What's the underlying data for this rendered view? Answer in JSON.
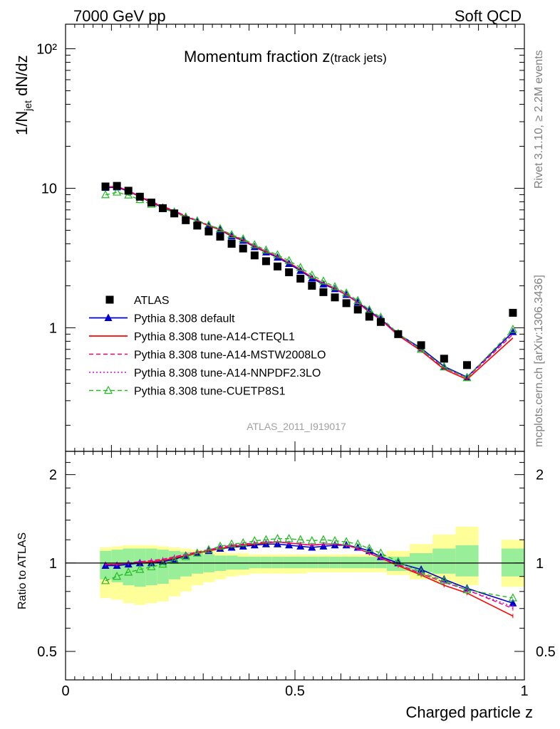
{
  "header": {
    "left": "7000 GeV pp",
    "right": "Soft QCD"
  },
  "side": {
    "rivet": "Rivet 3.1.10, ≥ 2.2M events",
    "mcplots": "mcplots.cern.ch [arXiv:1306.3436]"
  },
  "analysis_id": "ATLAS_2011_I919017",
  "main_title": "Momentum fraction z",
  "main_title_sub": "(track jets)",
  "ylabel_main": "1/N",
  "ylabel_main_sub": "jet",
  "ylabel_main_rest": " dN/dz",
  "ylabel_ratio": "Ratio to ATLAS",
  "xlabel": "Charged particle z",
  "chart_data": {
    "type": "line",
    "x_range": [
      0,
      1
    ],
    "y_main_range": [
      0.13,
      150
    ],
    "y_main_scale": "log",
    "y_ratio_range": [
      0.4,
      2.4
    ],
    "y_ratio_scale": "log",
    "x_ticks": [
      "0",
      "0.5",
      "1"
    ],
    "y_main_ticks": [
      "1",
      "10",
      "10²"
    ],
    "y_ratio_ticks": [
      "0.5",
      "1",
      "2"
    ],
    "legend_position": "middle-left",
    "x": [
      0.087,
      0.112,
      0.137,
      0.162,
      0.187,
      0.212,
      0.237,
      0.262,
      0.287,
      0.312,
      0.337,
      0.362,
      0.387,
      0.412,
      0.437,
      0.462,
      0.487,
      0.512,
      0.537,
      0.562,
      0.587,
      0.612,
      0.637,
      0.662,
      0.687,
      0.725,
      0.775,
      0.825,
      0.875,
      0.975
    ],
    "atlas": [
      10.3,
      10.4,
      9.6,
      8.7,
      7.9,
      7.2,
      6.6,
      5.9,
      5.4,
      4.9,
      4.5,
      4.0,
      3.7,
      3.3,
      3.0,
      2.75,
      2.5,
      2.25,
      2.0,
      1.8,
      1.65,
      1.5,
      1.35,
      1.2,
      1.1,
      0.9,
      0.75,
      0.6,
      0.54,
      1.28
    ],
    "band_x_edges": [
      0.075,
      0.1,
      0.125,
      0.15,
      0.175,
      0.2,
      0.225,
      0.25,
      0.275,
      0.3,
      0.325,
      0.35,
      0.375,
      0.4,
      0.425,
      0.45,
      0.475,
      0.5,
      0.525,
      0.55,
      0.575,
      0.6,
      0.625,
      0.65,
      0.675,
      0.7,
      0.75,
      0.8,
      0.85,
      0.9
    ],
    "band_inner": [
      [
        0.88,
        1.1
      ],
      [
        0.86,
        1.11
      ],
      [
        0.84,
        1.12
      ],
      [
        0.83,
        1.12
      ],
      [
        0.84,
        1.12
      ],
      [
        0.85,
        1.11
      ],
      [
        0.88,
        1.1
      ],
      [
        0.9,
        1.09
      ],
      [
        0.92,
        1.08
      ],
      [
        0.93,
        1.07
      ],
      [
        0.94,
        1.06
      ],
      [
        0.95,
        1.06
      ],
      [
        0.95,
        1.05
      ],
      [
        0.96,
        1.05
      ],
      [
        0.96,
        1.05
      ],
      [
        0.96,
        1.05
      ],
      [
        0.96,
        1.05
      ],
      [
        0.96,
        1.05
      ],
      [
        0.96,
        1.05
      ],
      [
        0.96,
        1.05
      ],
      [
        0.96,
        1.05
      ],
      [
        0.96,
        1.05
      ],
      [
        0.96,
        1.05
      ],
      [
        0.96,
        1.05
      ],
      [
        0.96,
        1.05
      ],
      [
        0.94,
        1.05
      ],
      [
        0.93,
        1.08
      ],
      [
        0.92,
        1.12
      ],
      [
        0.9,
        1.15
      ]
    ],
    "band_outer": [
      [
        0.76,
        1.13
      ],
      [
        0.75,
        1.14
      ],
      [
        0.73,
        1.15
      ],
      [
        0.72,
        1.15
      ],
      [
        0.73,
        1.15
      ],
      [
        0.74,
        1.14
      ],
      [
        0.77,
        1.13
      ],
      [
        0.8,
        1.12
      ],
      [
        0.84,
        1.11
      ],
      [
        0.86,
        1.1
      ],
      [
        0.88,
        1.09
      ],
      [
        0.9,
        1.08
      ],
      [
        0.91,
        1.08
      ],
      [
        0.92,
        1.07
      ],
      [
        0.92,
        1.07
      ],
      [
        0.92,
        1.07
      ],
      [
        0.92,
        1.07
      ],
      [
        0.92,
        1.07
      ],
      [
        0.93,
        1.07
      ],
      [
        0.93,
        1.07
      ],
      [
        0.93,
        1.07
      ],
      [
        0.93,
        1.07
      ],
      [
        0.93,
        1.07
      ],
      [
        0.93,
        1.07
      ],
      [
        0.93,
        1.07
      ],
      [
        0.91,
        1.1
      ],
      [
        0.88,
        1.16
      ],
      [
        0.86,
        1.25
      ],
      [
        0.84,
        1.33
      ]
    ],
    "band_last": {
      "x": [
        0.95,
        1.0
      ],
      "inner": [
        0.9,
        1.12
      ],
      "outer": [
        0.83,
        1.2
      ]
    },
    "series": [
      {
        "name": "ATLAS",
        "color": "#000000",
        "style": "data",
        "marker": "square"
      },
      {
        "name": "Pythia 8.308 default",
        "color": "#0000cc",
        "style": "solid",
        "marker": "triangle-filled",
        "ratio": [
          0.98,
          0.98,
          0.99,
          1.0,
          1.0,
          1.01,
          1.03,
          1.06,
          1.08,
          1.1,
          1.12,
          1.13,
          1.14,
          1.15,
          1.16,
          1.16,
          1.15,
          1.14,
          1.13,
          1.14,
          1.15,
          1.15,
          1.13,
          1.1,
          1.05,
          1.0,
          0.95,
          0.88,
          0.82,
          0.73
        ]
      },
      {
        "name": "Pythia 8.308 tune-A14-CTEQL1",
        "color": "#ff0000",
        "style": "solid",
        "marker": "none",
        "ratio": [
          0.99,
          0.99,
          1.0,
          1.0,
          1.01,
          1.02,
          1.04,
          1.06,
          1.08,
          1.1,
          1.12,
          1.14,
          1.15,
          1.16,
          1.17,
          1.18,
          1.17,
          1.16,
          1.15,
          1.16,
          1.16,
          1.15,
          1.12,
          1.08,
          1.04,
          0.98,
          0.91,
          0.84,
          0.79,
          0.66
        ]
      },
      {
        "name": "Pythia 8.308 tune-A14-MSTW2008LO",
        "color": "#ee0066",
        "style": "dashed",
        "marker": "none",
        "ratio": [
          0.99,
          0.99,
          1.0,
          1.01,
          1.02,
          1.03,
          1.05,
          1.07,
          1.09,
          1.11,
          1.13,
          1.15,
          1.16,
          1.17,
          1.18,
          1.18,
          1.17,
          1.16,
          1.15,
          1.16,
          1.16,
          1.15,
          1.12,
          1.08,
          1.04,
          0.99,
          0.92,
          0.86,
          0.81,
          0.7
        ]
      },
      {
        "name": "Pythia 8.308 tune-A14-NNPDF2.3LO",
        "color": "#dd00dd",
        "style": "dotted",
        "marker": "none",
        "ratio": [
          0.99,
          0.99,
          1.0,
          1.01,
          1.02,
          1.03,
          1.05,
          1.07,
          1.09,
          1.11,
          1.13,
          1.15,
          1.16,
          1.17,
          1.18,
          1.18,
          1.17,
          1.16,
          1.15,
          1.16,
          1.16,
          1.15,
          1.12,
          1.08,
          1.04,
          0.99,
          0.92,
          0.86,
          0.81,
          0.71
        ]
      },
      {
        "name": "Pythia 8.308 tune-CUETP8S1",
        "color": "#22bb22",
        "style": "dashed",
        "marker": "triangle-open",
        "ratio": [
          0.87,
          0.9,
          0.93,
          0.95,
          0.97,
          0.99,
          1.02,
          1.05,
          1.08,
          1.11,
          1.14,
          1.16,
          1.17,
          1.19,
          1.2,
          1.21,
          1.21,
          1.2,
          1.19,
          1.2,
          1.19,
          1.18,
          1.16,
          1.12,
          1.08,
          1.01,
          0.93,
          0.87,
          0.81,
          0.76
        ]
      }
    ]
  }
}
